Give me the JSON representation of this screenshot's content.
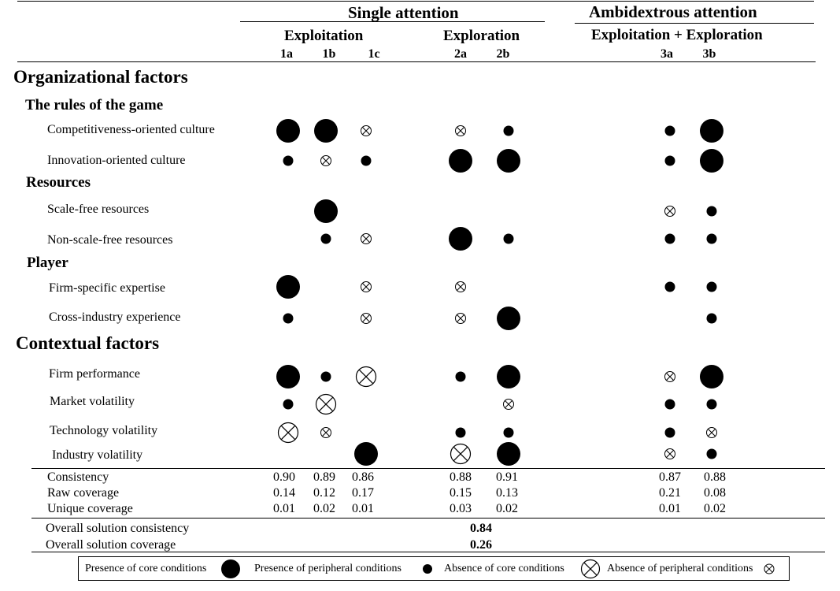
{
  "header": {
    "single_attention": "Single attention",
    "ambidextrous_attention": "Ambidextrous attention",
    "exploitation": "Exploitation",
    "exploration": "Exploration",
    "exploitation_exploration": "Exploitation + Exploration"
  },
  "columns": [
    "1a",
    "1b",
    "1c",
    "2a",
    "2b",
    "3a",
    "3b"
  ],
  "sections": {
    "organizational": "Organizational factors",
    "contextual": "Contextual factors",
    "rules": "The rules of the game",
    "resources": "Resources",
    "player": "Player"
  },
  "factors": [
    {
      "label": "Competitiveness-oriented culture",
      "cells": [
        "core-present",
        "core-present",
        "peripheral-absent",
        "peripheral-absent",
        "peripheral-present",
        null,
        "peripheral-present",
        "core-present"
      ]
    },
    {
      "label": "Innovation-oriented culture",
      "cells": [
        "peripheral-present",
        "peripheral-absent",
        "peripheral-present",
        "core-present",
        "core-present",
        null,
        "peripheral-present",
        "core-present"
      ]
    },
    {
      "label": "Scale-free resources",
      "cells": [
        null,
        "core-present",
        null,
        null,
        null,
        null,
        "peripheral-absent",
        "peripheral-present"
      ]
    },
    {
      "label": "Non-scale-free resources",
      "cells": [
        null,
        "peripheral-present",
        "peripheral-absent",
        "core-present",
        "peripheral-present",
        null,
        "peripheral-present",
        "peripheral-present"
      ]
    },
    {
      "label": "Firm-specific expertise",
      "cells": [
        "core-present",
        null,
        "peripheral-absent",
        "peripheral-absent",
        null,
        null,
        "peripheral-present",
        "peripheral-present"
      ]
    },
    {
      "label": "Cross-industry experience",
      "cells": [
        "peripheral-present",
        null,
        "peripheral-absent",
        "peripheral-absent",
        "core-present",
        null,
        null,
        "peripheral-present"
      ]
    },
    {
      "label": "Firm performance",
      "cells": [
        "core-present",
        "peripheral-present",
        "core-absent",
        "peripheral-present",
        "core-present",
        null,
        "peripheral-absent",
        "core-present"
      ]
    },
    {
      "label": "Market volatility",
      "cells": [
        "peripheral-present",
        "core-absent",
        null,
        null,
        "peripheral-absent",
        null,
        "peripheral-present",
        "peripheral-present"
      ]
    },
    {
      "label": "Technology volatility",
      "cells": [
        "core-absent",
        "peripheral-absent",
        null,
        "peripheral-present",
        "peripheral-present",
        null,
        "peripheral-present",
        "peripheral-absent"
      ]
    },
    {
      "label": "Industry volatility",
      "cells": [
        null,
        null,
        "core-present",
        "core-absent",
        "core-present",
        null,
        "peripheral-absent",
        "peripheral-present"
      ]
    }
  ],
  "stats": [
    {
      "label": "Consistency",
      "values": [
        "0.90",
        "0.89",
        "0.86",
        "0.88",
        "0.91",
        "0.87",
        "0.88"
      ]
    },
    {
      "label": "Raw coverage",
      "values": [
        "0.14",
        "0.12",
        "0.17",
        "0.15",
        "0.13",
        "0.21",
        "0.08"
      ]
    },
    {
      "label": "Unique coverage",
      "values": [
        "0.01",
        "0.02",
        "0.01",
        "0.03",
        "0.02",
        "0.01",
        "0.02"
      ]
    }
  ],
  "overall": {
    "consistency_label": "Overall solution consistency",
    "consistency_value": "0.84",
    "coverage_label": "Overall solution coverage",
    "coverage_value": "0.26"
  },
  "legend": {
    "core_present": "Presence of core conditions",
    "peripheral_present": "Presence of peripheral conditions",
    "core_absent": "Absence of core conditions",
    "peripheral_absent": "Absence of peripheral conditions"
  }
}
